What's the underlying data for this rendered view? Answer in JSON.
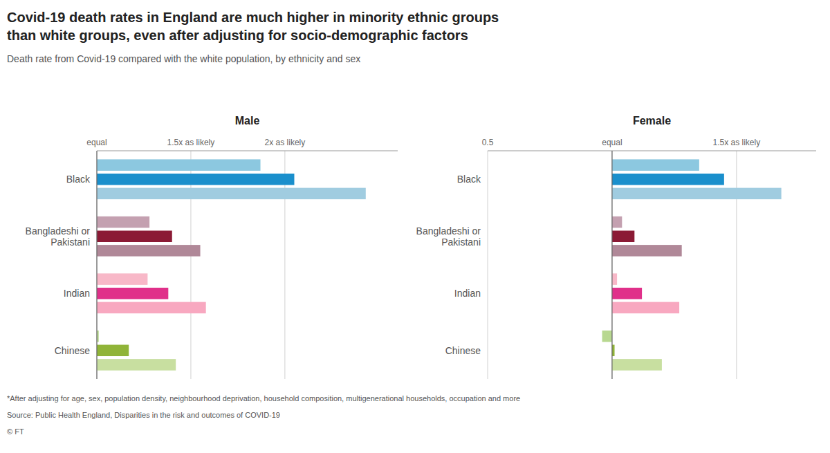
{
  "title": "Covid-19 death rates in England are much higher in minority ethnic groups\nthan white groups, even after adjusting for socio-demographic factors",
  "subtitle": "Death rate from Covid-19 compared with the white population, by ethnicity and sex",
  "footnotes": [
    "*After adjusting for age, sex, population density, neighbourhood deprivation, household composition, multigenerational households, occupation and more",
    "Source: Public Health England, Disparities in the risk and outcomes of COVID-19",
    "© FT"
  ],
  "chart_data": [
    {
      "type": "bar",
      "orientation": "horizontal",
      "title": "Male",
      "categories": [
        "Black",
        "Bangladeshi or\nPakistani",
        "Indian",
        "Chinese"
      ],
      "base": 1.0,
      "series": [
        {
          "values": [
            1.87,
            1.28,
            1.27,
            1.01
          ],
          "colors": [
            "#8CC8E0",
            "#C4A0B0",
            "#F8B8C8",
            "#B8D890"
          ]
        },
        {
          "values": [
            2.05,
            1.4,
            1.38,
            1.17
          ],
          "colors": [
            "#1A8FCC",
            "#8B1A35",
            "#E0308A",
            "#90B438"
          ]
        },
        {
          "values": [
            2.43,
            1.55,
            1.58,
            1.42
          ],
          "colors": [
            "#A0CCE0",
            "#B08898",
            "#F8A8C0",
            "#C8DFA0"
          ]
        }
      ],
      "xlim": [
        1.0,
        2.6
      ],
      "xticks": [
        {
          "value": 1.0,
          "label": "equal"
        },
        {
          "value": 1.5,
          "label": "1.5x as likely"
        },
        {
          "value": 2.0,
          "label": "2x as likely"
        }
      ],
      "grid": true
    },
    {
      "type": "bar",
      "orientation": "horizontal",
      "title": "Female",
      "categories": [
        "Black",
        "Bangladeshi or\nPakistani",
        "Indian",
        "Chinese"
      ],
      "base": 1.0,
      "series": [
        {
          "values": [
            1.35,
            1.04,
            1.02,
            0.96
          ],
          "colors": [
            "#8CC8E0",
            "#C4A0B0",
            "#F8B8C8",
            "#B8D890"
          ]
        },
        {
          "values": [
            1.45,
            1.09,
            1.12,
            1.01
          ],
          "colors": [
            "#1A8FCC",
            "#8B1A35",
            "#E0308A",
            "#90B438"
          ]
        },
        {
          "values": [
            1.68,
            1.28,
            1.27,
            1.2
          ],
          "colors": [
            "#A0CCE0",
            "#B08898",
            "#F8A8C0",
            "#C8DFA0"
          ]
        }
      ],
      "xlim": [
        0.5,
        1.82
      ],
      "xticks": [
        0.5,
        {
          "value": 1.0,
          "label": "equal"
        },
        {
          "value": 1.5,
          "label": "1.5x as likely"
        }
      ],
      "grid": true
    }
  ]
}
